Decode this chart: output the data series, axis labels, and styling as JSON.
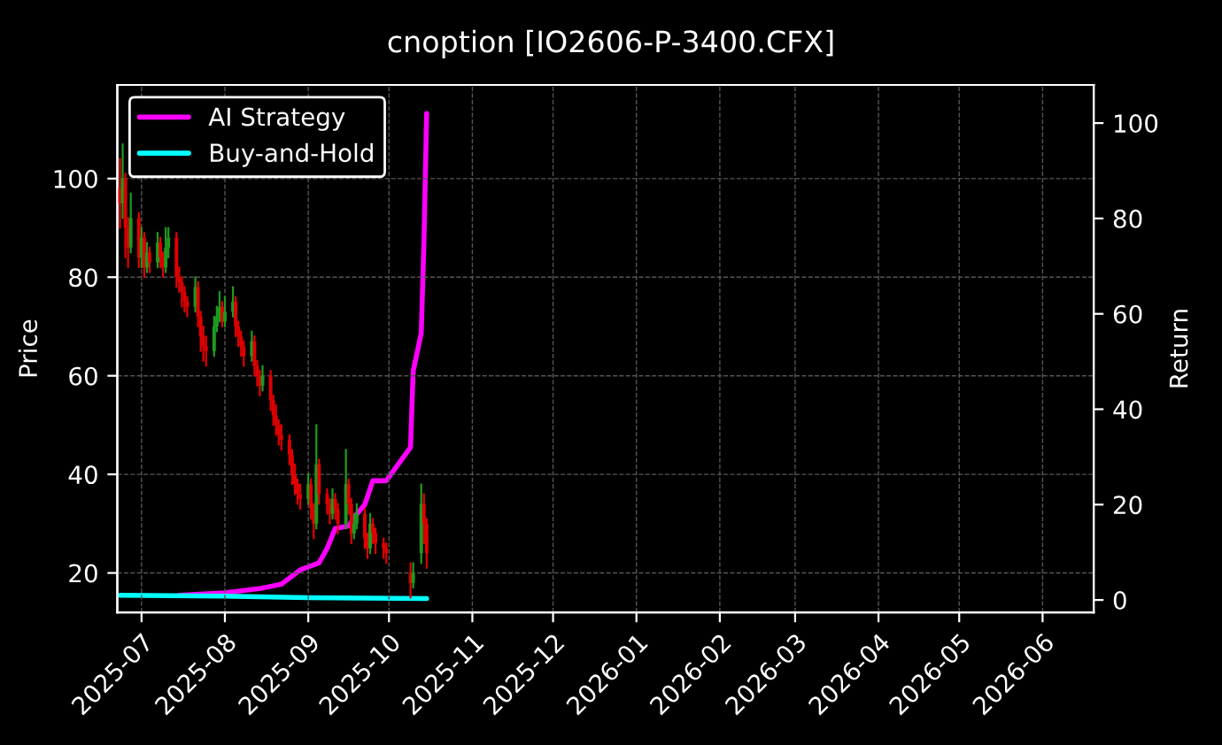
{
  "chart_data": {
    "type": "candlestick",
    "title": "cnoption [IO2606-P-3400.CFX]",
    "ylabel": "Price",
    "y2label": "Return",
    "x": [
      "2025-06-23",
      "2025-06-24",
      "2025-06-25",
      "2025-06-26",
      "2025-06-27",
      "2025-06-30",
      "2025-07-01",
      "2025-07-02",
      "2025-07-03",
      "2025-07-04",
      "2025-07-07",
      "2025-07-08",
      "2025-07-09",
      "2025-07-10",
      "2025-07-11",
      "2025-07-14",
      "2025-07-15",
      "2025-07-16",
      "2025-07-17",
      "2025-07-18",
      "2025-07-21",
      "2025-07-22",
      "2025-07-23",
      "2025-07-24",
      "2025-07-25",
      "2025-07-28",
      "2025-07-29",
      "2025-07-30",
      "2025-07-31",
      "2025-08-01",
      "2025-08-04",
      "2025-08-05",
      "2025-08-06",
      "2025-08-07",
      "2025-08-08",
      "2025-08-11",
      "2025-08-12",
      "2025-08-13",
      "2025-08-14",
      "2025-08-15",
      "2025-08-18",
      "2025-08-19",
      "2025-08-20",
      "2025-08-21",
      "2025-08-22",
      "2025-08-25",
      "2025-08-26",
      "2025-08-27",
      "2025-08-28",
      "2025-08-29",
      "2025-09-01",
      "2025-09-02",
      "2025-09-03",
      "2025-09-04",
      "2025-09-05",
      "2025-09-08",
      "2025-09-09",
      "2025-09-10",
      "2025-09-11",
      "2025-09-12",
      "2025-09-15",
      "2025-09-16",
      "2025-09-17",
      "2025-09-18",
      "2025-09-19",
      "2025-09-22",
      "2025-09-23",
      "2025-09-24",
      "2025-09-25",
      "2025-09-26",
      "2025-09-29",
      "2025-09-30",
      "2025-10-09",
      "2025-10-10",
      "2025-10-13",
      "2025-10-14",
      "2025-10-15"
    ],
    "ohlc": [
      [
        98,
        104,
        90,
        95
      ],
      [
        95,
        107,
        92,
        100
      ],
      [
        100,
        101,
        84,
        90
      ],
      [
        90,
        92,
        82,
        86
      ],
      [
        86,
        97,
        85,
        92
      ],
      [
        92,
        93,
        82,
        84
      ],
      [
        84,
        90,
        82,
        88
      ],
      [
        88,
        89,
        80,
        82
      ],
      [
        82,
        87,
        81,
        85
      ],
      [
        85,
        86,
        81,
        83
      ],
      [
        83,
        89,
        82,
        87
      ],
      [
        87,
        88,
        82,
        84
      ],
      [
        84,
        85,
        80,
        82
      ],
      [
        82,
        90,
        81,
        86
      ],
      [
        86,
        90,
        84,
        88
      ],
      [
        88,
        89,
        78,
        80
      ],
      [
        80,
        82,
        77,
        79
      ],
      [
        79,
        80,
        74,
        77
      ],
      [
        77,
        78,
        73,
        75
      ],
      [
        75,
        76,
        72,
        74
      ],
      [
        74,
        80,
        73,
        78
      ],
      [
        78,
        79,
        70,
        72
      ],
      [
        72,
        73,
        65,
        68
      ],
      [
        68,
        70,
        63,
        66
      ],
      [
        66,
        68,
        62,
        65
      ],
      [
        65,
        72,
        64,
        70
      ],
      [
        70,
        74,
        69,
        72
      ],
      [
        72,
        77,
        71,
        74
      ],
      [
        74,
        75,
        70,
        71
      ],
      [
        71,
        76,
        70,
        73
      ],
      [
        73,
        78,
        72,
        75
      ],
      [
        75,
        76,
        68,
        70
      ],
      [
        70,
        71,
        66,
        68
      ],
      [
        68,
        69,
        64,
        66
      ],
      [
        66,
        67,
        62,
        64
      ],
      [
        64,
        69,
        63,
        67
      ],
      [
        67,
        68,
        60,
        62
      ],
      [
        62,
        63,
        58,
        60
      ],
      [
        60,
        61,
        56,
        58
      ],
      [
        58,
        62,
        57,
        60
      ],
      [
        60,
        61,
        53,
        55
      ],
      [
        55,
        56,
        50,
        52
      ],
      [
        52,
        54,
        48,
        50
      ],
      [
        50,
        51,
        46,
        48
      ],
      [
        48,
        50,
        45,
        47
      ],
      [
        47,
        48,
        42,
        44
      ],
      [
        44,
        45,
        38,
        40
      ],
      [
        40,
        42,
        36,
        38
      ],
      [
        38,
        39,
        34,
        36
      ],
      [
        36,
        38,
        33,
        35
      ],
      [
        35,
        40,
        34,
        38
      ],
      [
        38,
        39,
        31,
        33
      ],
      [
        33,
        34,
        27,
        30
      ],
      [
        30,
        50,
        29,
        42
      ],
      [
        42,
        43,
        34,
        36
      ],
      [
        36,
        37,
        32,
        34
      ],
      [
        34,
        35,
        30,
        32
      ],
      [
        32,
        37,
        31,
        35
      ],
      [
        35,
        36,
        31,
        33
      ],
      [
        33,
        34,
        28,
        30
      ],
      [
        30,
        45,
        29,
        38
      ],
      [
        38,
        39,
        32,
        34
      ],
      [
        34,
        35,
        26,
        28
      ],
      [
        28,
        32,
        27,
        30
      ],
      [
        30,
        34,
        29,
        32
      ],
      [
        32,
        33,
        25,
        27
      ],
      [
        27,
        28,
        23,
        25
      ],
      [
        25,
        32,
        24,
        30
      ],
      [
        30,
        31,
        26,
        28
      ],
      [
        28,
        29,
        24,
        26
      ],
      [
        26,
        27,
        23,
        25
      ],
      [
        25,
        26,
        22,
        24
      ],
      [
        20,
        22,
        15,
        18
      ],
      [
        18,
        22,
        17,
        20
      ],
      [
        24,
        38,
        22,
        34
      ],
      [
        34,
        36,
        26,
        30
      ],
      [
        30,
        31,
        21,
        24
      ]
    ],
    "colors": [
      "#e00000",
      "#1f9a1f",
      "#e00000",
      "#e00000",
      "#1f9a1f",
      "#e00000",
      "#1f9a1f",
      "#e00000",
      "#1f9a1f",
      "#e00000",
      "#1f9a1f",
      "#e00000",
      "#e00000",
      "#1f9a1f",
      "#1f9a1f",
      "#e00000",
      "#e00000",
      "#e00000",
      "#e00000",
      "#e00000",
      "#1f9a1f",
      "#e00000",
      "#e00000",
      "#e00000",
      "#e00000",
      "#1f9a1f",
      "#1f9a1f",
      "#1f9a1f",
      "#e00000",
      "#1f9a1f",
      "#1f9a1f",
      "#e00000",
      "#e00000",
      "#e00000",
      "#e00000",
      "#1f9a1f",
      "#e00000",
      "#e00000",
      "#e00000",
      "#1f9a1f",
      "#e00000",
      "#e00000",
      "#e00000",
      "#e00000",
      "#e00000",
      "#e00000",
      "#e00000",
      "#e00000",
      "#e00000",
      "#e00000",
      "#1f9a1f",
      "#e00000",
      "#e00000",
      "#1f9a1f",
      "#e00000",
      "#e00000",
      "#e00000",
      "#1f9a1f",
      "#e00000",
      "#e00000",
      "#1f9a1f",
      "#e00000",
      "#e00000",
      "#1f9a1f",
      "#1f9a1f",
      "#e00000",
      "#e00000",
      "#1f9a1f",
      "#e00000",
      "#e00000",
      "#e00000",
      "#e00000",
      "#e00000",
      "#1f9a1f",
      "#1f9a1f",
      "#e00000",
      "#e00000"
    ],
    "series": [
      {
        "name": "AI Strategy",
        "type": "line",
        "axis": "y2",
        "color": "#ff00ff",
        "x": [
          "2025-07-15",
          "2025-08-01",
          "2025-08-15",
          "2025-08-22",
          "2025-08-29",
          "2025-09-05",
          "2025-09-08",
          "2025-09-11",
          "2025-09-16",
          "2025-09-19",
          "2025-09-22",
          "2025-09-25",
          "2025-09-30",
          "2025-10-09",
          "2025-10-10",
          "2025-10-13",
          "2025-10-14",
          "2025-10-15"
        ],
        "values": [
          1.0,
          1.5,
          2.5,
          3.3,
          6.3,
          7.8,
          10.8,
          15,
          15.5,
          18,
          20,
          25,
          25,
          32,
          48,
          56,
          75,
          102
        ]
      },
      {
        "name": "Buy-and-Hold",
        "type": "line",
        "axis": "y2",
        "color": "#00ffff",
        "x": [
          "2025-06-23",
          "2025-08-01",
          "2025-09-01",
          "2025-10-15"
        ],
        "values": [
          1.0,
          0.8,
          0.5,
          0.3
        ]
      }
    ],
    "xlim": [
      "2025-06-22",
      "2026-06-20"
    ],
    "xticks": [
      "2025-07",
      "2025-08",
      "2025-09",
      "2025-10",
      "2025-11",
      "2025-12",
      "2026-01",
      "2026-02",
      "2026-03",
      "2026-04",
      "2026-05",
      "2026-06"
    ],
    "ylim": [
      12,
      119
    ],
    "yticks": [
      20,
      40,
      60,
      80,
      100
    ],
    "y2lim": [
      -2.6,
      108
    ],
    "y2ticks": [
      0,
      20,
      40,
      60,
      80,
      100
    ],
    "grid": true,
    "legend": "top left"
  }
}
